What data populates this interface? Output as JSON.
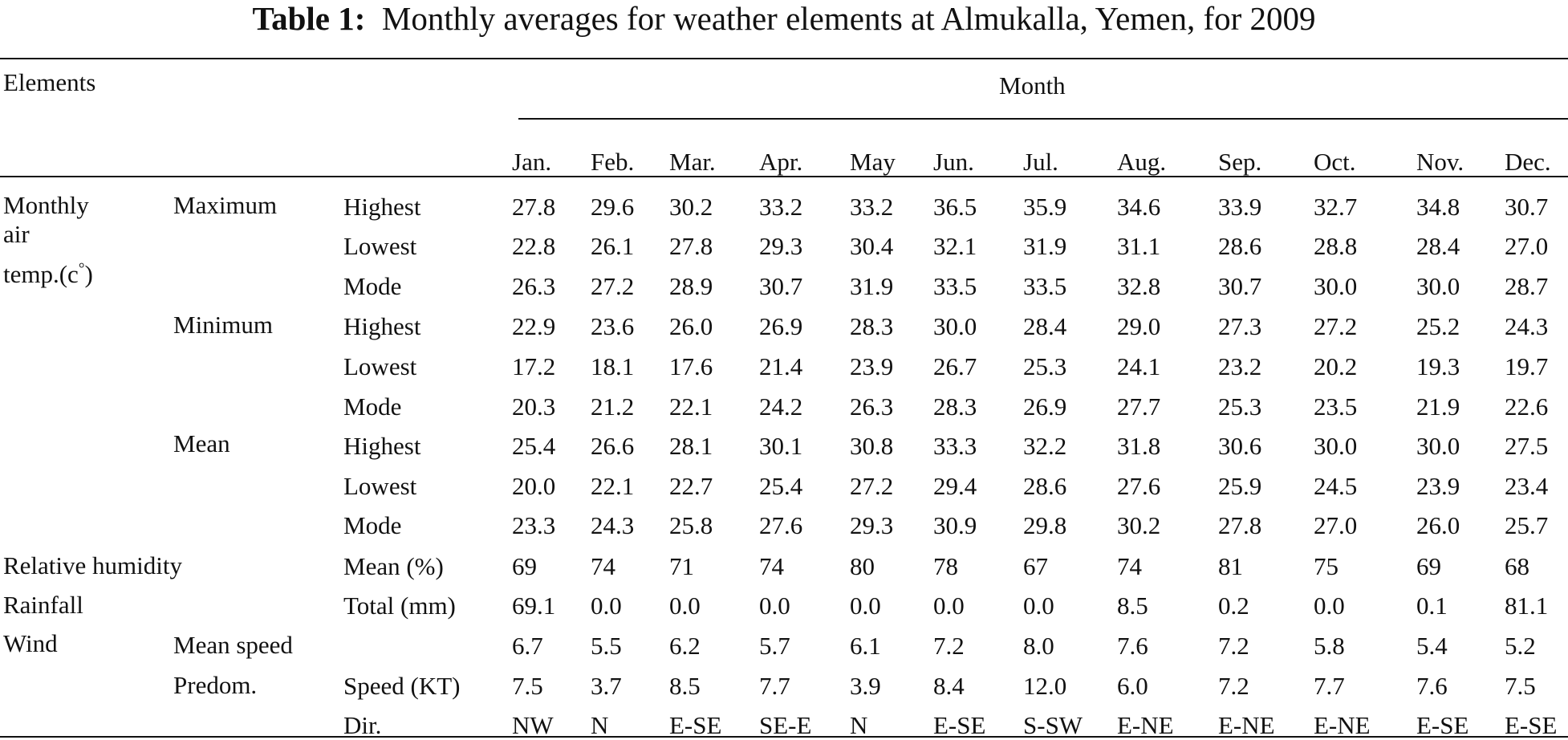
{
  "caption": {
    "label": "Table 1:",
    "text": "Monthly averages for weather elements at Almukalla, Yemen, for 2009"
  },
  "header": {
    "elements": "Elements",
    "month": "Month",
    "months": [
      "Jan.",
      "Feb.",
      "Mar.",
      "Apr.",
      "May",
      "Jun.",
      "Jul.",
      "Aug.",
      "Sep.",
      "Oct.",
      "Nov.",
      "Dec."
    ]
  },
  "groups": {
    "air_temp_line1": "Monthly",
    "air_temp_line2": "air",
    "air_temp_line3_prefix": "temp.(c",
    "air_temp_degree": "°",
    "air_temp_line3_suffix": ")",
    "maximum": "Maximum",
    "minimum": "Minimum",
    "mean": "Mean",
    "relative_humidity": "Relative humidity",
    "rainfall": "Rainfall",
    "wind": "Wind",
    "mean_speed": "Mean speed",
    "predom": "Predom."
  },
  "rows": [
    {
      "label": "Highest",
      "values": [
        "27.8",
        "29.6",
        "30.2",
        "33.2",
        "33.2",
        "36.5",
        "35.9",
        "34.6",
        "33.9",
        "32.7",
        "34.8",
        "30.7"
      ]
    },
    {
      "label": "Lowest",
      "values": [
        "22.8",
        "26.1",
        "27.8",
        "29.3",
        "30.4",
        "32.1",
        "31.9",
        "31.1",
        "28.6",
        "28.8",
        "28.4",
        "27.0"
      ]
    },
    {
      "label": "Mode",
      "values": [
        "26.3",
        "27.2",
        "28.9",
        "30.7",
        "31.9",
        "33.5",
        "33.5",
        "32.8",
        "30.7",
        "30.0",
        "30.0",
        "28.7"
      ]
    },
    {
      "label": "Highest",
      "values": [
        "22.9",
        "23.6",
        "26.0",
        "26.9",
        "28.3",
        "30.0",
        "28.4",
        "29.0",
        "27.3",
        "27.2",
        "25.2",
        "24.3"
      ]
    },
    {
      "label": "Lowest",
      "values": [
        "17.2",
        "18.1",
        "17.6",
        "21.4",
        "23.9",
        "26.7",
        "25.3",
        "24.1",
        "23.2",
        "20.2",
        "19.3",
        "19.7"
      ]
    },
    {
      "label": "Mode",
      "values": [
        "20.3",
        "21.2",
        "22.1",
        "24.2",
        "26.3",
        "28.3",
        "26.9",
        "27.7",
        "25.3",
        "23.5",
        "21.9",
        "22.6"
      ]
    },
    {
      "label": "Highest",
      "values": [
        "25.4",
        "26.6",
        "28.1",
        "30.1",
        "30.8",
        "33.3",
        "32.2",
        "31.8",
        "30.6",
        "30.0",
        "30.0",
        "27.5"
      ]
    },
    {
      "label": "Lowest",
      "values": [
        "20.0",
        "22.1",
        "22.7",
        "25.4",
        "27.2",
        "29.4",
        "28.6",
        "27.6",
        "25.9",
        "24.5",
        "23.9",
        "23.4"
      ]
    },
    {
      "label": "Mode",
      "values": [
        "23.3",
        "24.3",
        "25.8",
        "27.6",
        "29.3",
        "30.9",
        "29.8",
        "30.2",
        "27.8",
        "27.0",
        "26.0",
        "25.7"
      ]
    },
    {
      "label": "Mean (%)",
      "values": [
        "69",
        "74",
        "71",
        "74",
        "80",
        "78",
        "67",
        "74",
        "81",
        "75",
        "69",
        "68"
      ]
    },
    {
      "label": "Total (mm)",
      "values": [
        "69.1",
        "0.0",
        "0.0",
        "0.0",
        "0.0",
        "0.0",
        "0.0",
        "8.5",
        "0.2",
        "0.0",
        "0.1",
        "81.1"
      ]
    },
    {
      "label": "",
      "values": [
        "6.7",
        "5.5",
        "6.2",
        "5.7",
        "6.1",
        "7.2",
        "8.0",
        "7.6",
        "7.2",
        "5.8",
        "5.4",
        "5.2"
      ]
    },
    {
      "label": "Speed (KT)",
      "values": [
        "7.5",
        "3.7",
        "8.5",
        "7.7",
        "3.9",
        "8.4",
        "12.0",
        "6.0",
        "7.2",
        "7.7",
        "7.6",
        "7.5"
      ]
    },
    {
      "label": "Dir.",
      "values": [
        "NW",
        "N",
        "E-SE",
        "SE-E",
        "N",
        "E-SE",
        "S-SW",
        "E-NE",
        "E-NE",
        "E-NE",
        "E-SE",
        "E-SE"
      ]
    }
  ]
}
